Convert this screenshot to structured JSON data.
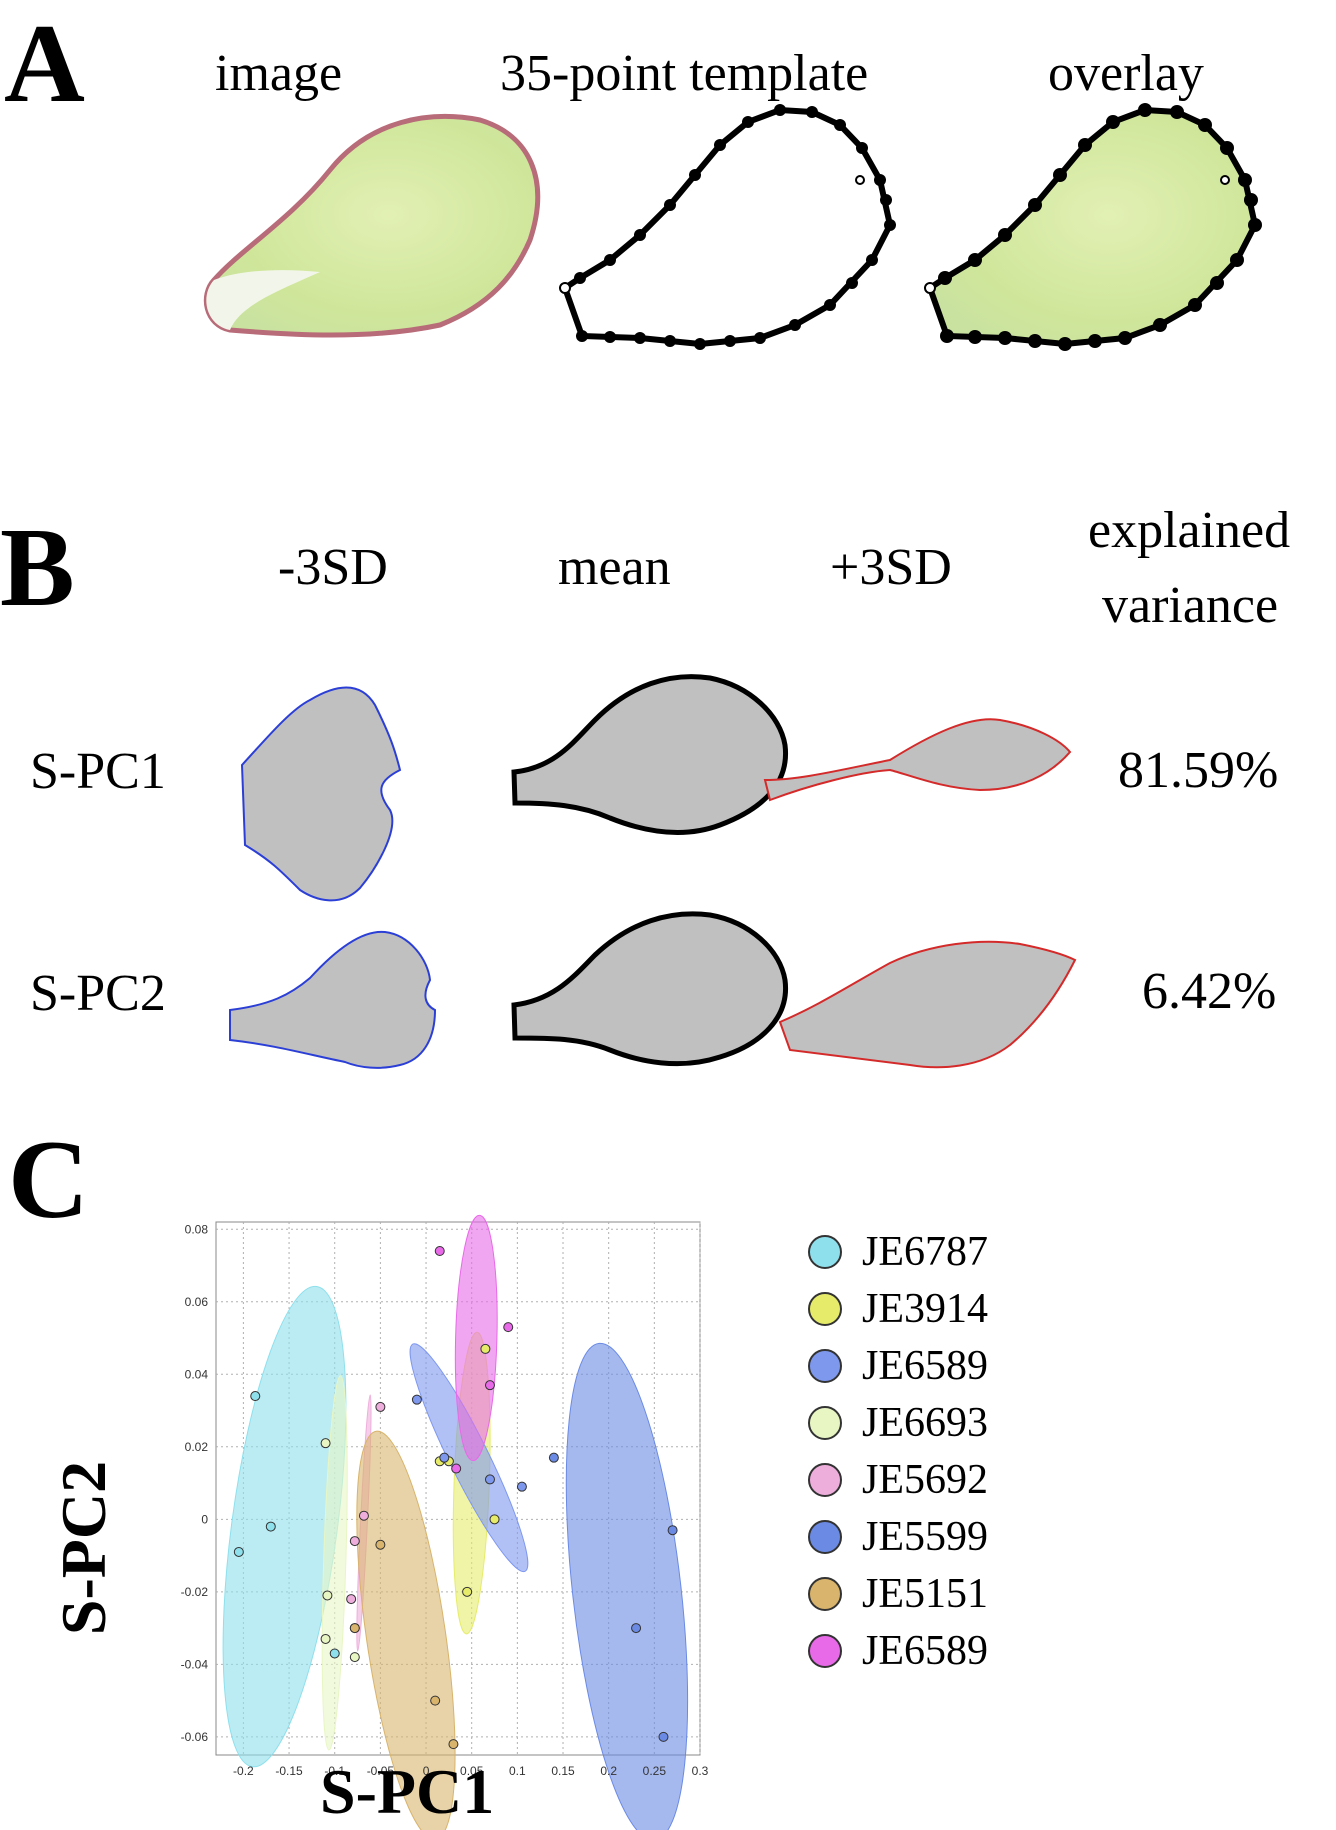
{
  "panel_a": {
    "letter": "A",
    "headers": [
      "image",
      "35-point template",
      "overlay"
    ]
  },
  "panel_b": {
    "letter": "B",
    "headers": [
      "-3SD",
      "mean",
      "+3SD"
    ],
    "explained_line1": "explained",
    "explained_line2": "variance",
    "rows": [
      {
        "label": "S-PC1",
        "variance": "81.59%"
      },
      {
        "label": "S-PC2",
        "variance": "6.42%"
      }
    ],
    "colors": {
      "minus": "#2b3fd6",
      "mean": "#000000",
      "plus": "#d42a2a",
      "fill": "#c0c0c0"
    }
  },
  "panel_c": {
    "letter": "C",
    "legend": [
      {
        "label": "JE6787",
        "color": "#8ee0ec"
      },
      {
        "label": "JE3914",
        "color": "#e6ec6a"
      },
      {
        "label": "JE6589",
        "color": "#7e98ee"
      },
      {
        "label": "JE6693",
        "color": "#e8f6c4"
      },
      {
        "label": "JE5692",
        "color": "#eeaedc"
      },
      {
        "label": "JE5599",
        "color": "#6a8ae4"
      },
      {
        "label": "JE5151",
        "color": "#d8b46c"
      },
      {
        "label": "JE6589",
        "color": "#e86ae8"
      }
    ]
  },
  "chart_data": {
    "type": "scatter",
    "title": "",
    "xlabel": "S-PC1",
    "ylabel": "S-PC2",
    "xlim": [
      -0.23,
      0.3
    ],
    "ylim": [
      -0.065,
      0.082
    ],
    "xticks": [
      -0.2,
      -0.15,
      -0.1,
      -0.05,
      0,
      0.05,
      0.1,
      0.15,
      0.2,
      0.25,
      0.3
    ],
    "xtick_labels": [
      "-0.2",
      "-0.15",
      "-0.1",
      "-0.05",
      "0",
      "0.05",
      "0.1",
      "0.15",
      "0.2",
      "0.25",
      "0.3"
    ],
    "yticks": [
      0.08,
      0.06,
      0.04,
      0.02,
      0,
      -0.02,
      -0.04,
      -0.06
    ],
    "ytick_labels": [
      "0.08",
      "0.06",
      "0.04",
      "0.02",
      "0",
      "-0.02",
      "-0.04",
      "-0.06"
    ],
    "grid": true,
    "series": [
      {
        "name": "JE6787",
        "color": "#8ee0ec",
        "points": [
          [
            -0.187,
            0.034
          ],
          [
            -0.205,
            -0.009
          ],
          [
            -0.17,
            -0.002
          ],
          [
            -0.1,
            -0.037
          ]
        ],
        "ellipse": {
          "cx": -0.155,
          "cy": -0.002,
          "rx": 0.075,
          "ry": 0.028,
          "angle": 62
        }
      },
      {
        "name": "JE3914",
        "color": "#e6ec6a",
        "points": [
          [
            0.065,
            0.047
          ],
          [
            0.075,
            0.0
          ],
          [
            0.045,
            -0.02
          ],
          [
            0.015,
            0.016
          ],
          [
            0.025,
            0.016
          ]
        ],
        "ellipse": {
          "cx": 0.05,
          "cy": 0.01,
          "rx": 0.042,
          "ry": 0.017,
          "angle": 82
        }
      },
      {
        "name": "JE6589",
        "color": "#7e98ee",
        "points": [
          [
            -0.01,
            0.033
          ],
          [
            0.07,
            0.011
          ],
          [
            0.105,
            0.009
          ],
          [
            0.02,
            0.017
          ]
        ],
        "ellipse": {
          "cx": 0.047,
          "cy": 0.017,
          "rx": 0.069,
          "ry": 0.006,
          "angle": -27
        }
      },
      {
        "name": "JE6693",
        "color": "#e8f6c4",
        "points": [
          [
            -0.11,
            0.021
          ],
          [
            -0.108,
            -0.021
          ],
          [
            -0.11,
            -0.033
          ],
          [
            -0.078,
            -0.038
          ]
        ],
        "ellipse": {
          "cx": -0.1,
          "cy": -0.012,
          "rx": 0.052,
          "ry": 0.011,
          "angle": 83
        }
      },
      {
        "name": "JE5692",
        "color": "#eeaedc",
        "points": [
          [
            -0.05,
            0.031
          ],
          [
            -0.068,
            0.001
          ],
          [
            -0.078,
            -0.006
          ],
          [
            -0.082,
            -0.022
          ],
          [
            -0.078,
            -0.03
          ]
        ],
        "ellipse": {
          "cx": -0.068,
          "cy": -0.001,
          "rx": 0.036,
          "ry": 0.003,
          "angle": 79
        }
      },
      {
        "name": "JE5599",
        "color": "#6a8ae4",
        "points": [
          [
            0.14,
            0.017
          ],
          [
            0.27,
            -0.003
          ],
          [
            0.23,
            -0.03
          ],
          [
            0.26,
            -0.06
          ]
        ],
        "ellipse": {
          "cx": 0.22,
          "cy": -0.02,
          "rx": 0.075,
          "ry": 0.032,
          "angle": -66
        }
      },
      {
        "name": "JE5151",
        "color": "#d8b46c",
        "points": [
          [
            -0.05,
            -0.007
          ],
          [
            -0.078,
            -0.03
          ],
          [
            0.01,
            -0.05
          ],
          [
            0.03,
            -0.062
          ]
        ],
        "ellipse": {
          "cx": -0.022,
          "cy": -0.032,
          "rx": 0.065,
          "ry": 0.02,
          "angle": -60
        }
      },
      {
        "name": "JE6589",
        "color": "#e86ae8",
        "points": [
          [
            0.015,
            0.074
          ],
          [
            0.09,
            0.053
          ],
          [
            0.07,
            0.037
          ],
          [
            0.033,
            0.014
          ]
        ],
        "ellipse": {
          "cx": 0.055,
          "cy": 0.05,
          "rx": 0.034,
          "ry": 0.021,
          "angle": 84
        }
      }
    ]
  }
}
